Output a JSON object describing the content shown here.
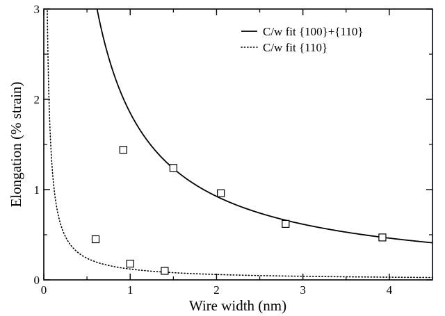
{
  "chart_data": {
    "type": "scatter",
    "xlabel": "Wire width (nm)",
    "ylabel": "Elongation (% strain)",
    "xlim": [
      0,
      4.5
    ],
    "ylim": [
      0,
      3
    ],
    "x_ticks": [
      "0",
      "1",
      "2",
      "3",
      "4"
    ],
    "y_ticks": [
      "0",
      "1",
      "2",
      "3"
    ],
    "legend_position": "top-right",
    "grid": false,
    "series": [
      {
        "type": "scatter",
        "marker": "open-square",
        "x": [
          0.6,
          0.92,
          1.0,
          1.4,
          1.5,
          2.05,
          2.8,
          3.92
        ],
        "y": [
          0.45,
          1.44,
          0.18,
          0.1,
          1.24,
          0.96,
          0.62,
          0.47
        ]
      },
      {
        "type": "line",
        "name": "C/w fit {100}+{110}",
        "style": "solid",
        "coefficient": 1.85
      },
      {
        "type": "line",
        "name": "C/w fit {110}",
        "style": "dotted",
        "coefficient": 0.12
      }
    ]
  }
}
